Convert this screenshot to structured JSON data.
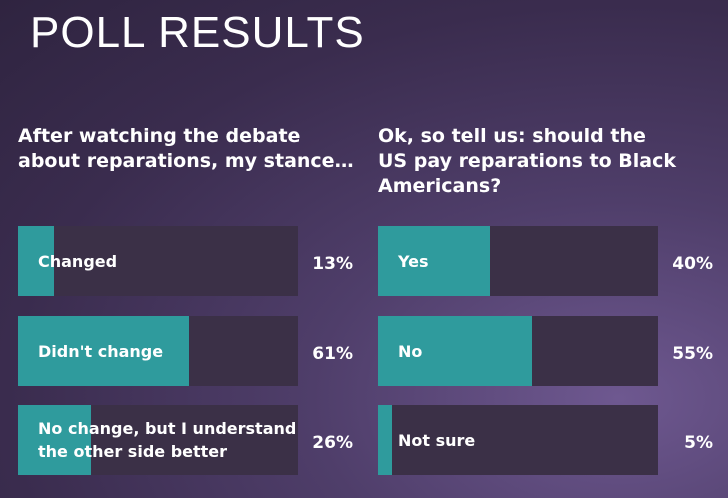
{
  "title": "POLL RESULTS",
  "chart_data": [
    {
      "type": "bar",
      "title": [
        "After watching the debate",
        "about reparations, my stance…"
      ],
      "categories": [
        "Changed",
        "Didn't change",
        "No change, but I understand the other side better"
      ],
      "values": [
        13,
        61,
        26
      ],
      "value_labels": [
        "13%",
        "61%",
        "26%"
      ],
      "color": "#2f9b9d",
      "xlim": [
        0,
        100
      ]
    },
    {
      "type": "bar",
      "title": [
        "Ok, so tell us: should the",
        "US pay reparations to Black",
        "Americans?"
      ],
      "categories": [
        "Yes",
        "No",
        "Not sure"
      ],
      "values": [
        40,
        55,
        5
      ],
      "value_labels": [
        "40%",
        "55%",
        "5%"
      ],
      "color": "#2f9b9d",
      "xlim": [
        0,
        100
      ]
    }
  ]
}
